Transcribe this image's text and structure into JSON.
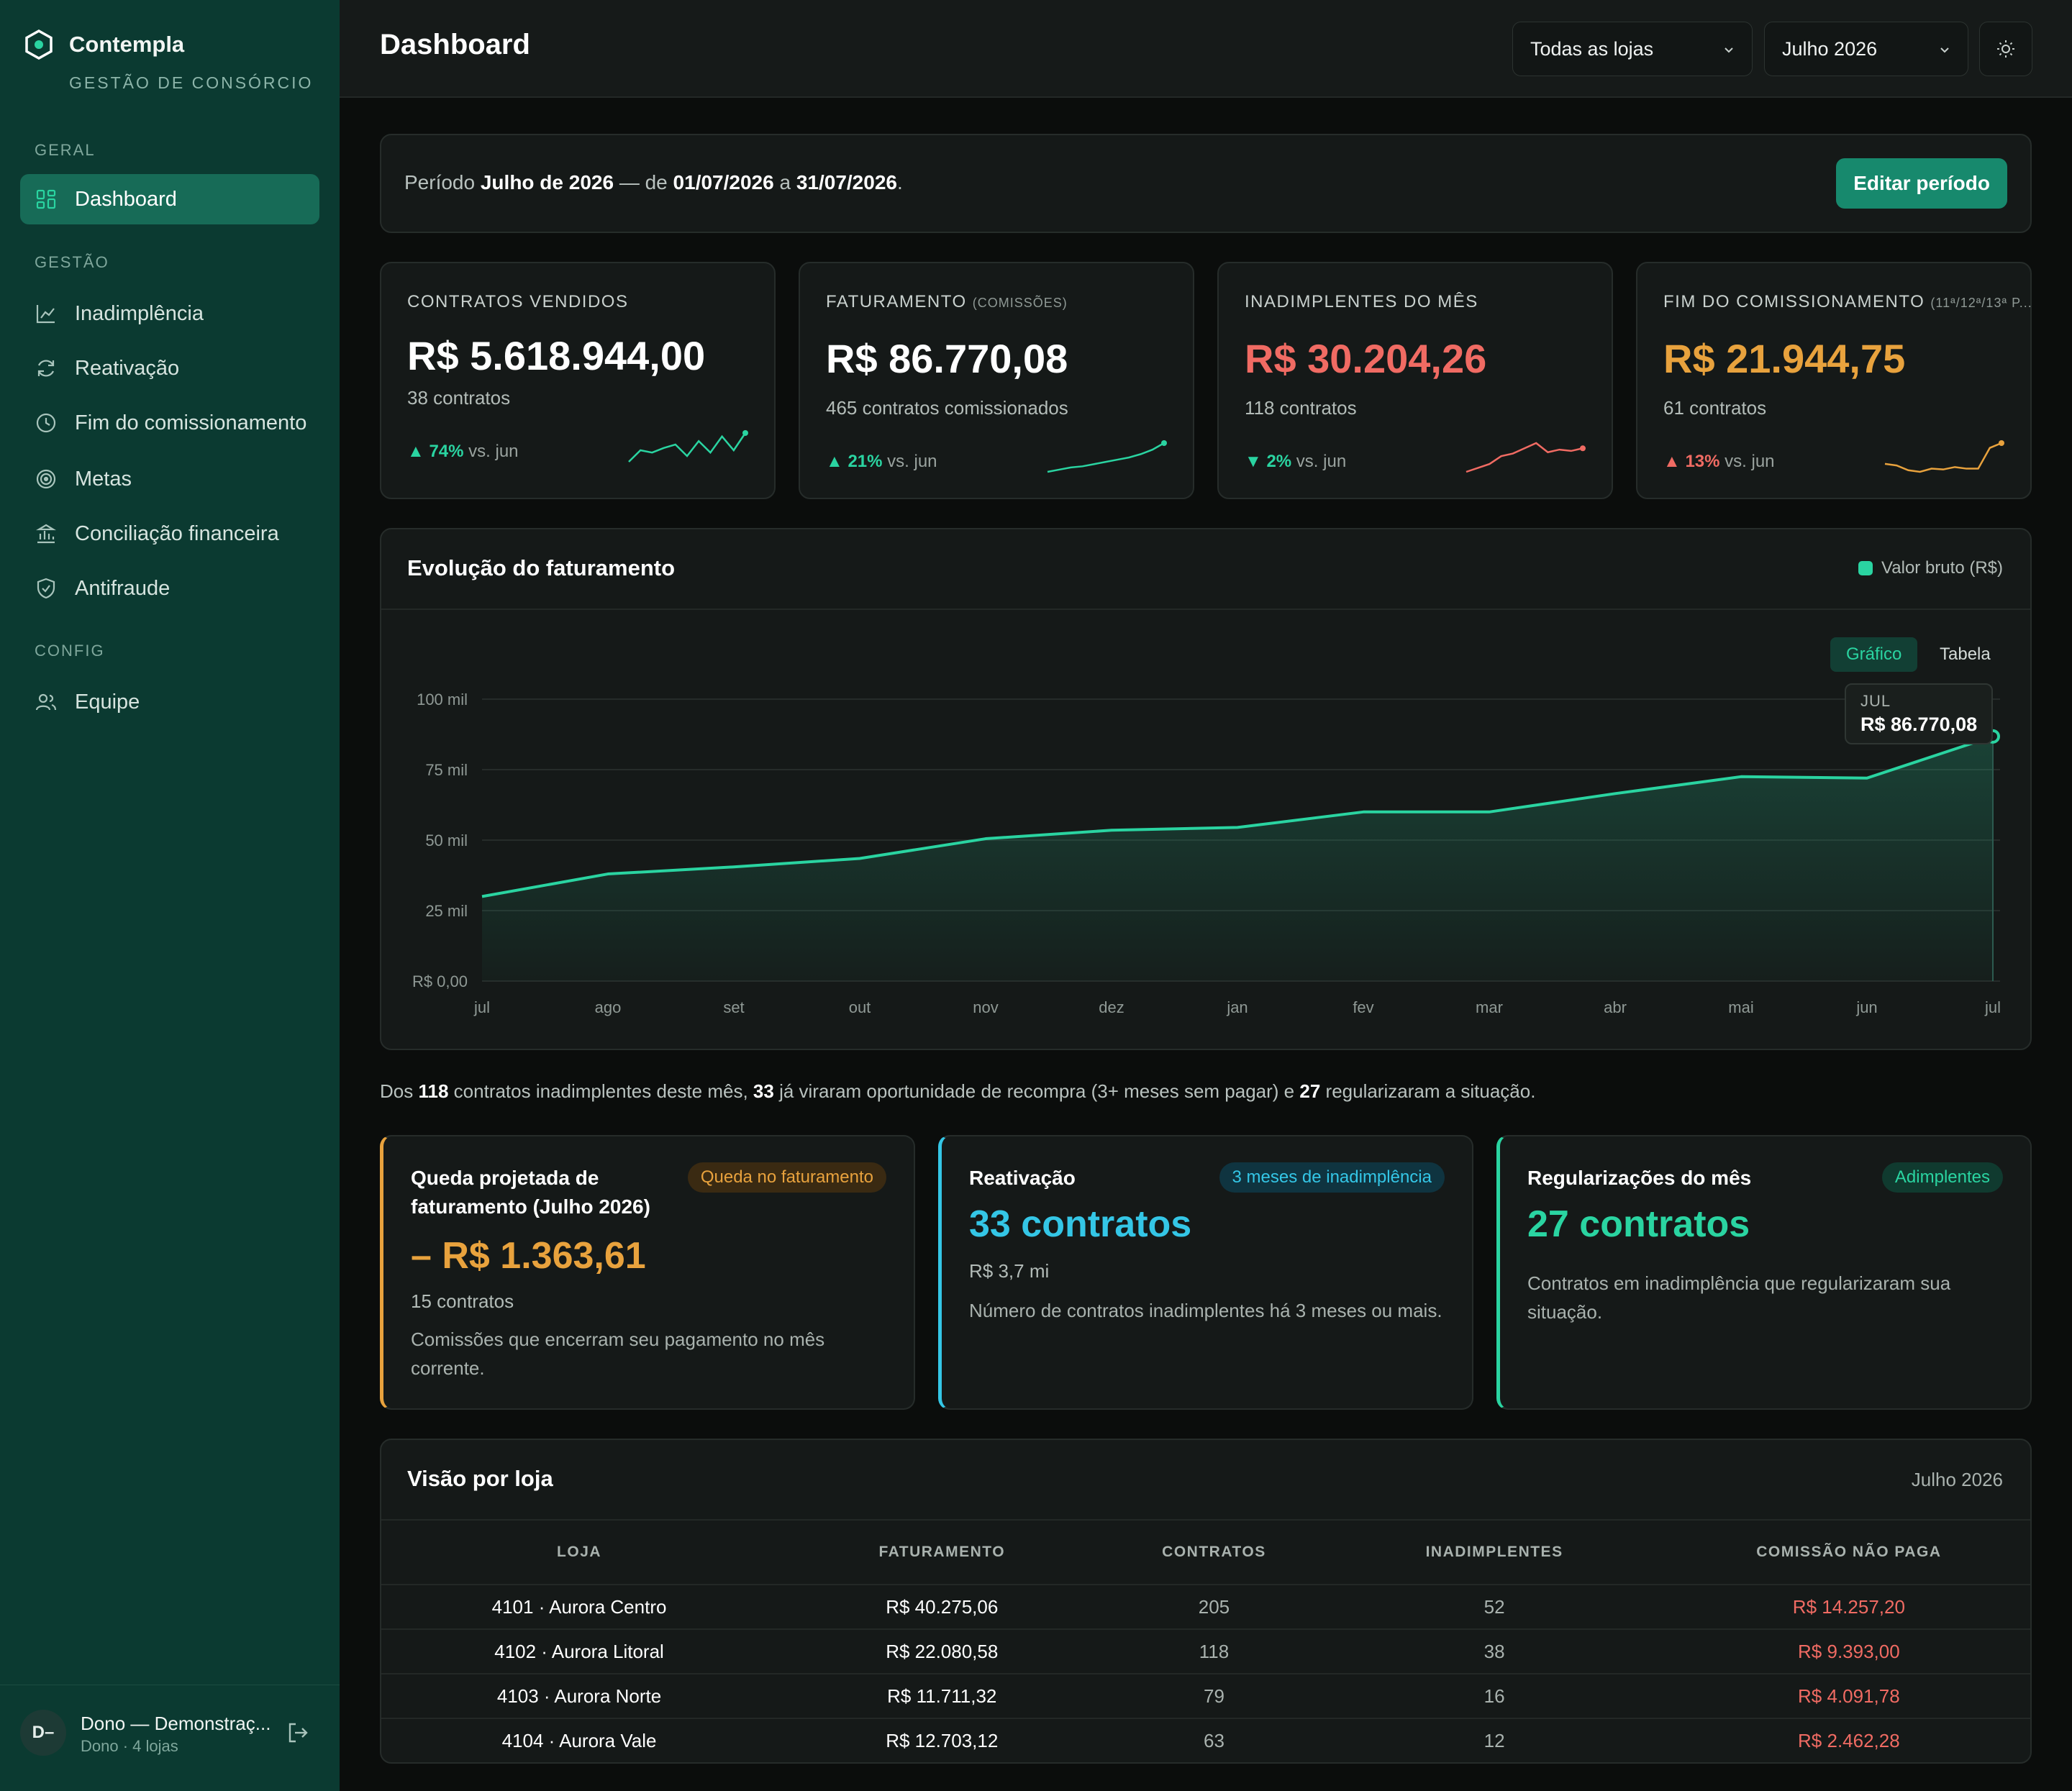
{
  "sidebar": {
    "brand": "Contempla",
    "subtitle": "GESTÃO DE CONSÓRCIO",
    "sections": {
      "geral": "GERAL",
      "gestao": "GESTÃO",
      "config": "CONFIG"
    },
    "items": [
      {
        "label": "Dashboard",
        "icon": "grid-icon"
      },
      {
        "label": "Inadimplência",
        "icon": "chart-line-icon"
      },
      {
        "label": "Reativação",
        "icon": "refresh-icon"
      },
      {
        "label": "Fim do comissionamento",
        "icon": "clock-icon"
      },
      {
        "label": "Metas",
        "icon": "target-icon"
      },
      {
        "label": "Conciliação financeira",
        "icon": "bank-icon"
      },
      {
        "label": "Antifraude",
        "icon": "shield-icon"
      },
      {
        "label": "Equipe",
        "icon": "users-icon"
      }
    ],
    "user": {
      "initials": "D–",
      "name": "Dono — Demonstraç...",
      "role": "Dono · 4 lojas"
    }
  },
  "header": {
    "title": "Dashboard",
    "store_select": "Todas as lojas",
    "month_select": "Julho 2026"
  },
  "period": {
    "prefix": "Período",
    "name": "Julho de 2026",
    "sep1": "— de",
    "start": "01/07/2026",
    "sep2": "a",
    "end": "31/07/2026",
    "dot": ".",
    "edit_label": "Editar período"
  },
  "kpis": [
    {
      "label": "CONTRATOS VENDIDOS",
      "label_note": "",
      "value": "R$ 5.618.944,00",
      "sub": "38 contratos",
      "trend_arrow": "▲",
      "trend_value": "74%",
      "trend_text": "vs. jun",
      "color": "#ffffff",
      "trend_color": "#2ad4a1",
      "spark": [
        30,
        40,
        38,
        42,
        45,
        35,
        48,
        38,
        52,
        40,
        55
      ]
    },
    {
      "label": "FATURAMENTO",
      "label_note": "(COMISSÕES)",
      "value": "R$ 86.770,08",
      "sub": "465 contratos comissionados",
      "trend_arrow": "▲",
      "trend_value": "21%",
      "trend_text": "vs. jun",
      "color": "#ffffff",
      "trend_color": "#2ad4a1",
      "spark": [
        10,
        14,
        18,
        20,
        24,
        28,
        32,
        36,
        42,
        50,
        62
      ]
    },
    {
      "label": "INADIMPLENTES DO MÊS",
      "label_note": "",
      "value": "R$ 30.204,26",
      "sub": "118 contratos",
      "trend_arrow": "▼",
      "trend_value": "2%",
      "trend_text": "vs. jun",
      "color": "#f06b63",
      "trend_color": "#2ad4a1",
      "spark": [
        10,
        16,
        22,
        34,
        38,
        46,
        54,
        40,
        44,
        42,
        46
      ]
    },
    {
      "label": "FIM DO COMISSIONAMENTO",
      "label_note": "(11ª/12ª/13ª P...",
      "value": "R$ 21.944,75",
      "sub": "61 contratos",
      "trend_arrow": "▲",
      "trend_value": "13%",
      "trend_text": "vs. jun",
      "color": "#e8a23d",
      "trend_color": "#f06b63",
      "spark": [
        30,
        28,
        22,
        20,
        24,
        23,
        26,
        24,
        24,
        50,
        56
      ]
    }
  ],
  "chart": {
    "title": "Evolução do faturamento",
    "legend": "Valor bruto (R$)",
    "toggle_chart": "Gráfico",
    "toggle_table": "Tabela",
    "tooltip_label": "JUL",
    "tooltip_value": "R$ 86.770,08",
    "colors": {
      "line": "#2ad4a1"
    }
  },
  "chart_data": {
    "type": "area",
    "categories": [
      "jul",
      "ago",
      "set",
      "out",
      "nov",
      "dez",
      "jan",
      "fev",
      "mar",
      "abr",
      "mai",
      "jun",
      "jul"
    ],
    "series": [
      {
        "name": "Valor bruto (R$)",
        "values": [
          30000,
          38000,
          40500,
          43500,
          50500,
          53500,
          54500,
          60000,
          60000,
          66500,
          72500,
          72000,
          86770.08
        ]
      }
    ],
    "yticks": [
      0,
      25000,
      50000,
      75000,
      100000
    ],
    "ytick_labels": [
      "R$ 0,00",
      "25 mil",
      "50 mil",
      "75 mil",
      "100 mil"
    ],
    "ylim": [
      0,
      100000
    ],
    "title": "Evolução do faturamento",
    "grid": true,
    "legend": "top-right"
  },
  "summary": {
    "p1": "Dos",
    "n1": "118",
    "p2": "contratos inadimplentes deste mês,",
    "n2": "33",
    "p3": "já viraram oportunidade de recompra (3+ meses sem pagar) e",
    "n3": "27",
    "p4": "regularizaram a situação."
  },
  "info_cards": [
    {
      "title": "Queda projetada de faturamento (Julho 2026)",
      "badge": "Queda no faturamento",
      "value": "– R$ 1.363,61",
      "sub": "15 contratos",
      "desc": "Comissões que encerram seu pagamento no mês corrente.",
      "color": "#e8a23d"
    },
    {
      "title": "Reativação",
      "badge": "3 meses de inadimplência",
      "value": "33 contratos",
      "sub": "R$ 3,7 mi",
      "desc": "Número de contratos inadimplentes há 3 meses ou mais.",
      "color": "#34c6e6"
    },
    {
      "title": "Regularizações do mês",
      "badge": "Adimplentes",
      "value": "27 contratos",
      "sub": "",
      "desc": "Contratos em inadimplência que regularizaram sua situação.",
      "color": "#2ad4a1"
    }
  ],
  "stores": {
    "title": "Visão por loja",
    "period": "Julho 2026",
    "columns": [
      "LOJA",
      "FATURAMENTO",
      "CONTRATOS",
      "INADIMPLENTES",
      "COMISSÃO NÃO PAGA"
    ],
    "rows": [
      [
        "4101 · Aurora Centro",
        "R$ 40.275,06",
        "205",
        "52",
        "R$ 14.257,20"
      ],
      [
        "4102 · Aurora Litoral",
        "R$ 22.080,58",
        "118",
        "38",
        "R$ 9.393,00"
      ],
      [
        "4103 · Aurora Norte",
        "R$ 11.711,32",
        "79",
        "16",
        "R$ 4.091,78"
      ],
      [
        "4104 · Aurora Vale",
        "R$ 12.703,12",
        "63",
        "12",
        "R$ 2.462,28"
      ]
    ]
  }
}
